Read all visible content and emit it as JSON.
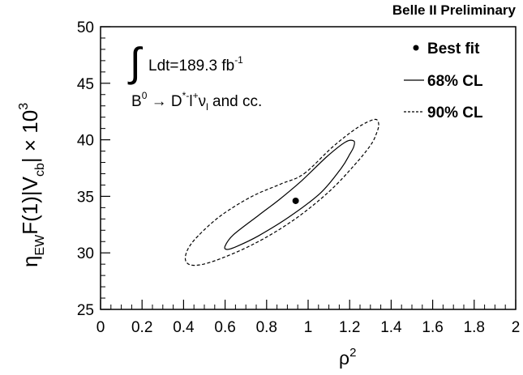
{
  "chart_data": {
    "type": "scatter",
    "title": "Belle II Preliminary",
    "xlabel": "ρ",
    "xlabel_sup": "2",
    "ylabel": {
      "eta": "η",
      "eta_sub": "EW",
      "mid": "F(1)|V",
      "v_sub": "cb",
      "tail": "| × 10",
      "tail_sup": "3"
    },
    "xlim": [
      0,
      2
    ],
    "ylim": [
      25,
      50
    ],
    "x_ticks": [
      "0",
      "0.2",
      "0.4",
      "0.6",
      "0.8",
      "1",
      "1.2",
      "1.4",
      "1.6",
      "1.8",
      "2"
    ],
    "y_ticks": [
      "25",
      "30",
      "35",
      "40",
      "45",
      "50"
    ],
    "annotations": {
      "lumi_text": "Ldt=189.3 fb",
      "lumi_sup": "-1",
      "decay": {
        "b": "B",
        "b_sup": "0",
        "arrow": " → D",
        "d_sup": "*",
        "l_sup_minus": "-",
        "l": "l",
        "l_sup_plus": "+",
        "nu": "ν",
        "nu_sub": "l",
        "tail": " and cc."
      }
    },
    "legend": {
      "placement": "top-right",
      "items": [
        {
          "label": "Best fit",
          "marker": "dot"
        },
        {
          "label": "68% CL",
          "marker": "solid-line"
        },
        {
          "label": "90% CL",
          "marker": "dashed-line"
        }
      ]
    },
    "series": [
      {
        "name": "Best fit",
        "x": [
          0.94
        ],
        "y": [
          34.6
        ]
      },
      {
        "name": "68% CL",
        "x": [
          0.97,
          1.09,
          1.18,
          1.22,
          1.22,
          1.2,
          1.16,
          1.06,
          0.91,
          0.76,
          0.66,
          0.61,
          0.6,
          0.64,
          0.76,
          0.86
        ],
        "y": [
          36.4,
          38.5,
          39.8,
          39.9,
          39.4,
          38.7,
          37.5,
          35.3,
          33.2,
          31.5,
          30.6,
          30.3,
          30.6,
          31.6,
          33.3,
          34.7
        ]
      },
      {
        "name": "90% CL",
        "x": [
          0.98,
          1.12,
          1.24,
          1.32,
          1.34,
          1.33,
          1.3,
          1.22,
          1.1,
          0.93,
          0.74,
          0.55,
          0.45,
          0.41,
          0.42,
          0.47,
          0.58,
          0.73,
          0.87
        ],
        "y": [
          37.0,
          39.4,
          41.1,
          41.8,
          41.4,
          40.6,
          39.5,
          37.7,
          35.4,
          32.9,
          30.8,
          29.3,
          28.9,
          29.3,
          30.3,
          31.5,
          33.3,
          35.0,
          36.1
        ]
      }
    ]
  }
}
